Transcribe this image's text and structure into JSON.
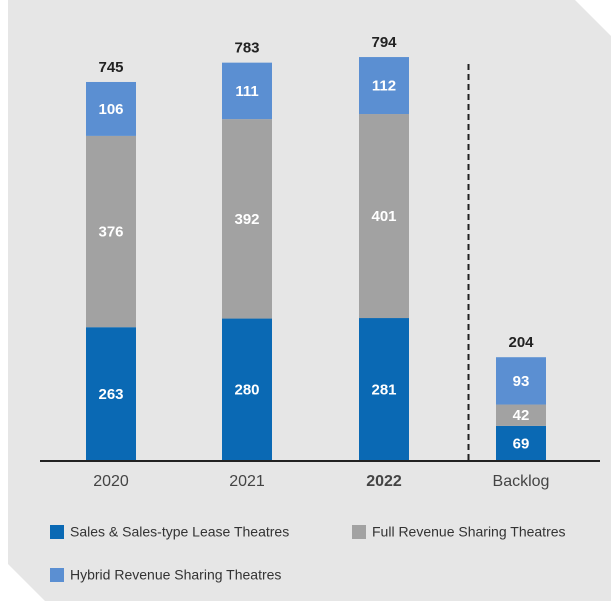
{
  "chart_data": {
    "type": "stacked_bar",
    "categories": [
      "2020",
      "2021",
      "2022",
      "Backlog"
    ],
    "highlight_index": 2,
    "separator_before_index": 3,
    "series": [
      {
        "name": "Sales & Sales-type Lease Theatres",
        "color": "#0a69b4",
        "values": [
          263,
          280,
          281,
          69
        ]
      },
      {
        "name": "Full Revenue Sharing Theatres",
        "color": "#a2a2a2",
        "values": [
          376,
          392,
          401,
          42
        ]
      },
      {
        "name": "Hybrid Revenue Sharing Theatres",
        "color": "#5b8fd2",
        "values": [
          106,
          111,
          112,
          93
        ]
      }
    ],
    "totals": [
      745,
      783,
      794,
      204
    ],
    "ylim": [
      0,
      800
    ]
  }
}
